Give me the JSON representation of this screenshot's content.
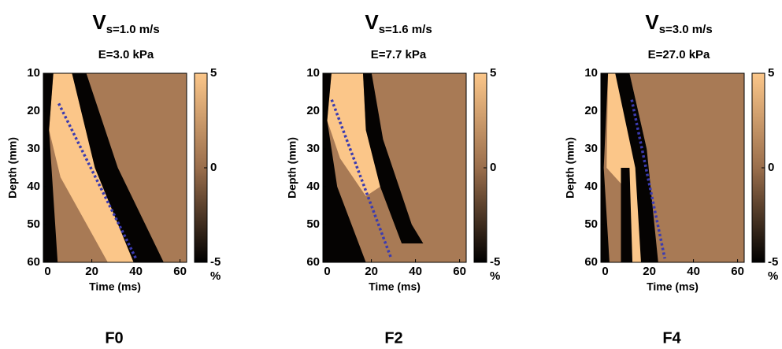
{
  "chart_data": [
    {
      "type": "heatmap",
      "title": "V",
      "title_sub": "s=1.0 m/s",
      "subtitle": "E=3.0 kPa",
      "panel_label": "F0",
      "xlabel": "Time (ms)",
      "ylabel": "Depth (mm)",
      "xlim": [
        -2,
        63
      ],
      "xticks": [
        0,
        20,
        40,
        60
      ],
      "ylim": [
        10,
        60
      ],
      "yticks": [
        10,
        20,
        30,
        40,
        50,
        60
      ],
      "y_inverted": true,
      "clim": [
        -5,
        5
      ],
      "cticks": [
        -5,
        0,
        5
      ],
      "clabel": "%",
      "series": [
        {
          "color": "#3b3bb0",
          "x": [
            5,
            40
          ],
          "values": [
            18,
            59
          ]
        }
      ]
    },
    {
      "type": "heatmap",
      "title": "V",
      "title_sub": "s=1.6 m/s",
      "subtitle": "E=7.7 kPa",
      "panel_label": "F2",
      "xlabel": "Time (ms)",
      "ylabel": "Depth (mm)",
      "xlim": [
        -2,
        63
      ],
      "xticks": [
        0,
        20,
        40,
        60
      ],
      "ylim": [
        10,
        60
      ],
      "yticks": [
        10,
        20,
        30,
        40,
        50,
        60
      ],
      "y_inverted": true,
      "clim": [
        -5,
        5
      ],
      "cticks": [
        -5,
        0,
        5
      ],
      "clabel": "%",
      "series": [
        {
          "color": "#3b3bb0",
          "x": [
            2,
            29
          ],
          "values": [
            17,
            59
          ]
        }
      ]
    },
    {
      "type": "heatmap",
      "title": "V",
      "title_sub": "s=3.0 m/s",
      "subtitle": "E=27.0 kPa",
      "panel_label": "F4",
      "xlabel": "Time (ms)",
      "ylabel": "Depth (mm)",
      "xlim": [
        -2,
        63
      ],
      "xticks": [
        0,
        20,
        40,
        60
      ],
      "ylim": [
        10,
        60
      ],
      "yticks": [
        10,
        20,
        30,
        40,
        50,
        60
      ],
      "y_inverted": true,
      "clim": [
        -5,
        5
      ],
      "cticks": [
        -5,
        0,
        5
      ],
      "clabel": "%",
      "series": [
        {
          "color": "#3b3bb0",
          "x": [
            12,
            27
          ],
          "values": [
            17,
            59
          ]
        }
      ]
    }
  ]
}
